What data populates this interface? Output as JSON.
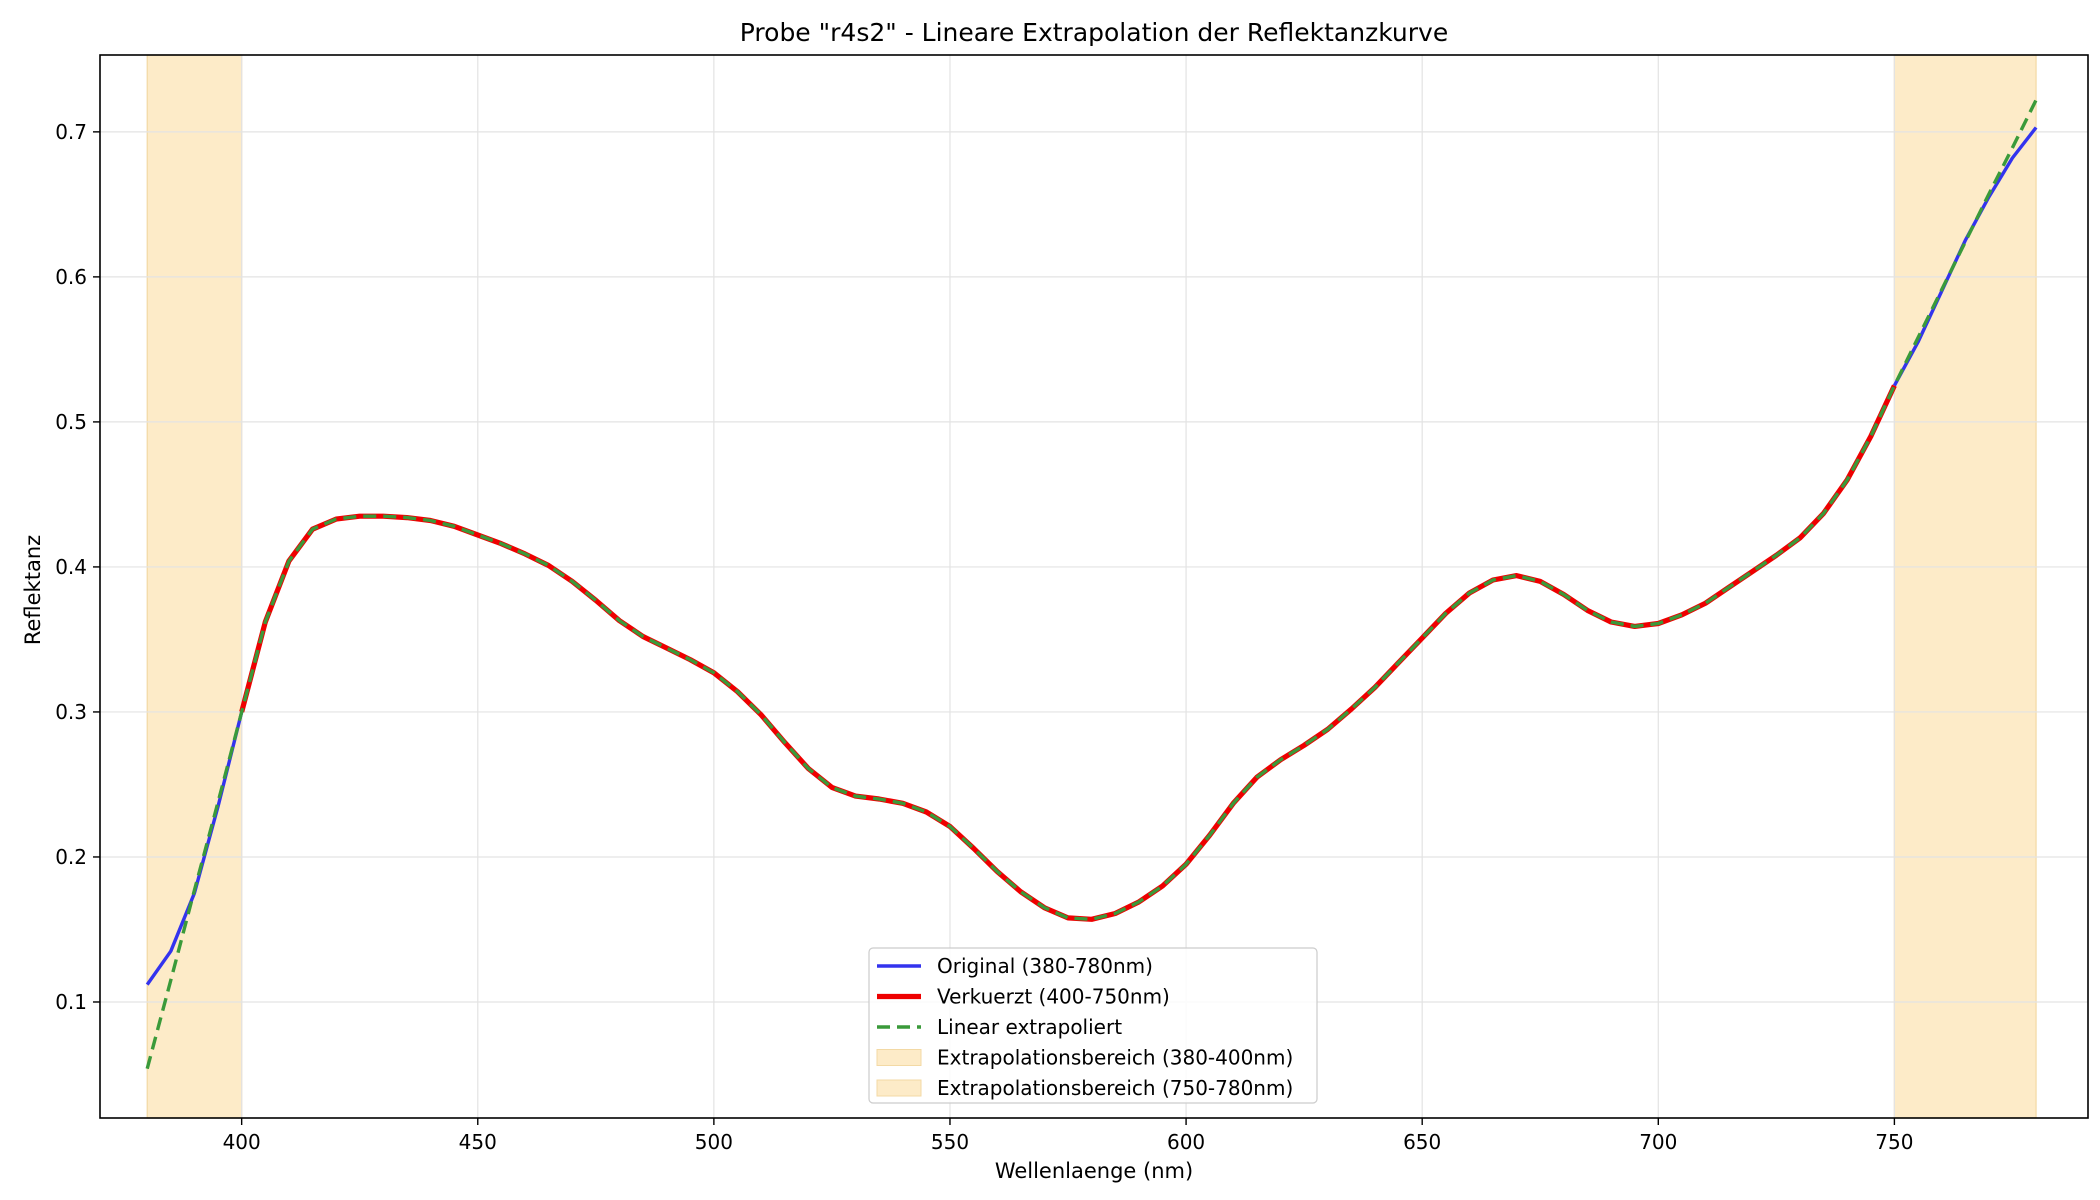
{
  "chart_data": {
    "type": "line",
    "title": "Probe \"r4s2\" - Lineare Extrapolation der Reflektanzkurve",
    "xlabel": "Wellenlaenge (nm)",
    "ylabel": "Reflektanz",
    "xlim": [
      370,
      791
    ],
    "ylim": [
      0.02,
      0.753
    ],
    "xticks": [
      400,
      450,
      500,
      550,
      600,
      650,
      700,
      750
    ],
    "yticks": [
      0.1,
      0.2,
      0.3,
      0.4,
      0.5,
      0.6,
      0.7
    ],
    "grid": true,
    "legend_position": "lower center",
    "shaded_regions": [
      {
        "name": "Extrapolationsbereich (380-400nm)",
        "x_range": [
          380,
          400
        ],
        "color": "#fdebc8"
      },
      {
        "name": "Extrapolationsbereich (750-780nm)",
        "x_range": [
          750,
          780
        ],
        "color": "#fdebc8"
      }
    ],
    "series": [
      {
        "name": "Original (380-780nm)",
        "color": "#3333ee",
        "style": "solid",
        "x": [
          380,
          385,
          390,
          395,
          400,
          755,
          760,
          765,
          770,
          775,
          780
        ],
        "y": [
          0.112,
          0.135,
          0.175,
          0.235,
          0.3,
          0.555,
          0.59,
          0.625,
          0.655,
          0.682,
          0.703
        ]
      },
      {
        "name": "Verkuerzt (400-750nm)",
        "color": "#ee0000",
        "style": "solid",
        "x": [
          400,
          405,
          410,
          415,
          420,
          425,
          430,
          435,
          440,
          445,
          450,
          455,
          460,
          465,
          470,
          475,
          480,
          485,
          490,
          495,
          500,
          505,
          510,
          515,
          520,
          525,
          530,
          535,
          540,
          545,
          550,
          555,
          560,
          565,
          570,
          575,
          580,
          585,
          590,
          595,
          600,
          605,
          610,
          615,
          620,
          625,
          630,
          635,
          640,
          645,
          650,
          655,
          660,
          665,
          670,
          675,
          680,
          685,
          690,
          695,
          700,
          705,
          710,
          715,
          720,
          725,
          730,
          735,
          740,
          745,
          750
        ],
        "y": [
          0.3,
          0.362,
          0.404,
          0.426,
          0.433,
          0.435,
          0.435,
          0.434,
          0.432,
          0.428,
          0.422,
          0.416,
          0.409,
          0.401,
          0.39,
          0.377,
          0.363,
          0.352,
          0.344,
          0.336,
          0.327,
          0.314,
          0.298,
          0.279,
          0.261,
          0.248,
          0.242,
          0.24,
          0.237,
          0.231,
          0.221,
          0.206,
          0.19,
          0.176,
          0.165,
          0.158,
          0.157,
          0.161,
          0.169,
          0.18,
          0.195,
          0.215,
          0.237,
          0.255,
          0.267,
          0.277,
          0.288,
          0.302,
          0.317,
          0.334,
          0.351,
          0.368,
          0.382,
          0.391,
          0.394,
          0.39,
          0.381,
          0.37,
          0.362,
          0.359,
          0.361,
          0.367,
          0.375,
          0.386,
          0.397,
          0.408,
          0.42,
          0.437,
          0.46,
          0.49,
          0.525
        ]
      },
      {
        "name": "Linear extrapoliert",
        "color": "#3a9a3a",
        "style": "dashed",
        "x": [
          380,
          385,
          390,
          395,
          400,
          405,
          410,
          415,
          420,
          425,
          430,
          435,
          440,
          445,
          450,
          455,
          460,
          465,
          470,
          475,
          480,
          485,
          490,
          495,
          500,
          505,
          510,
          515,
          520,
          525,
          530,
          535,
          540,
          545,
          550,
          555,
          560,
          565,
          570,
          575,
          580,
          585,
          590,
          595,
          600,
          605,
          610,
          615,
          620,
          625,
          630,
          635,
          640,
          645,
          650,
          655,
          660,
          665,
          670,
          675,
          680,
          685,
          690,
          695,
          700,
          705,
          710,
          715,
          720,
          725,
          730,
          735,
          740,
          745,
          750,
          755,
          760,
          765,
          770,
          775,
          780
        ],
        "y": [
          0.054,
          0.115,
          0.177,
          0.238,
          0.3,
          0.362,
          0.404,
          0.426,
          0.433,
          0.435,
          0.435,
          0.434,
          0.432,
          0.428,
          0.422,
          0.416,
          0.409,
          0.401,
          0.39,
          0.377,
          0.363,
          0.352,
          0.344,
          0.336,
          0.327,
          0.314,
          0.298,
          0.279,
          0.261,
          0.248,
          0.242,
          0.24,
          0.237,
          0.231,
          0.221,
          0.206,
          0.19,
          0.176,
          0.165,
          0.158,
          0.157,
          0.161,
          0.169,
          0.18,
          0.195,
          0.215,
          0.237,
          0.255,
          0.267,
          0.277,
          0.288,
          0.302,
          0.317,
          0.334,
          0.351,
          0.368,
          0.382,
          0.391,
          0.394,
          0.39,
          0.381,
          0.37,
          0.362,
          0.359,
          0.361,
          0.367,
          0.375,
          0.386,
          0.397,
          0.408,
          0.42,
          0.437,
          0.46,
          0.49,
          0.525,
          0.558,
          0.591,
          0.624,
          0.657,
          0.689,
          0.722
        ]
      }
    ]
  }
}
